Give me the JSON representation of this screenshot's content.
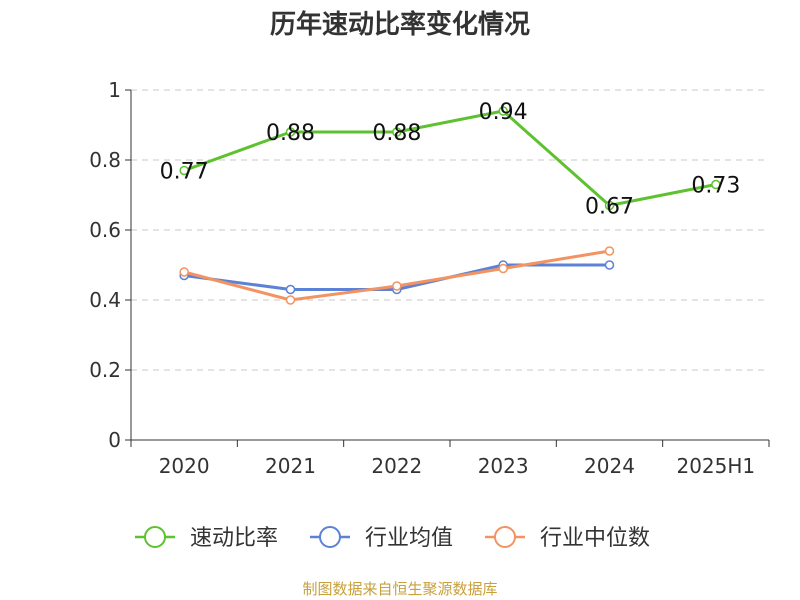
{
  "chart_data": {
    "type": "line",
    "title": "历年速动比率变化情况",
    "categories": [
      "2020",
      "2021",
      "2022",
      "2023",
      "2024",
      "2025H1"
    ],
    "ylim": [
      0,
      1
    ],
    "yticks": [
      "0",
      "0.2",
      "0.4",
      "0.6",
      "0.8",
      "1"
    ],
    "grid": true,
    "legend_position": "bottom",
    "series": [
      {
        "name": "速动比率",
        "color": "#5ec12f",
        "values": [
          0.77,
          0.88,
          0.88,
          0.94,
          0.67,
          0.73
        ],
        "show_labels": true
      },
      {
        "name": "行业均值",
        "color": "#5b82d6",
        "values": [
          0.47,
          0.43,
          0.43,
          0.5,
          0.5,
          null
        ],
        "show_labels": false
      },
      {
        "name": "行业中位数",
        "color": "#f29361",
        "values": [
          0.48,
          0.4,
          0.44,
          0.49,
          0.54,
          null
        ],
        "show_labels": false
      }
    ],
    "data_labels": [
      "0.77",
      "0.88",
      "0.88",
      "0.94",
      "0.67",
      "0.73"
    ],
    "source": "制图数据来自恒生聚源数据库"
  }
}
